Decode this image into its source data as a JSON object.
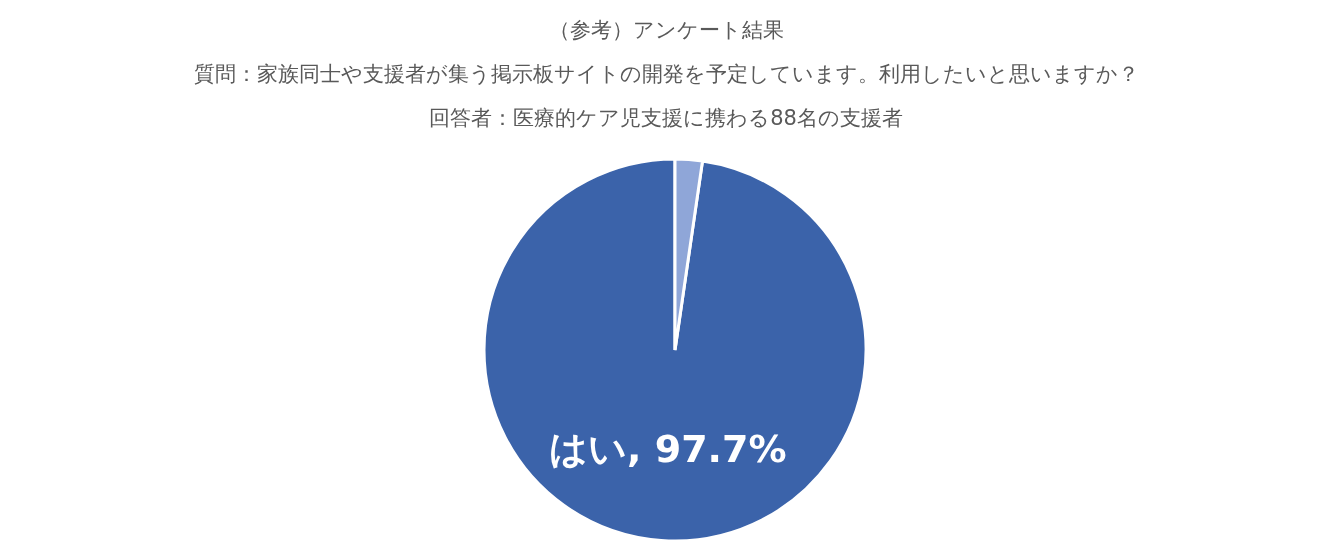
{
  "chart_data": {
    "type": "pie",
    "title": "（参考）アンケート結果",
    "subtitle": "質問：家族同士や支援者が集う掲示板サイトの開発を予定しています。利用したいと思いますか？",
    "annotations": [
      "回答者：医療的ケア児支援に携わる88名の支援者"
    ],
    "categories": [
      "はい",
      null
    ],
    "values": [
      97.7,
      2.3
    ],
    "colors": [
      "#3b63aa",
      "#8fa6d8"
    ],
    "value_labels": [
      "97.7%",
      null
    ],
    "legend": false
  }
}
